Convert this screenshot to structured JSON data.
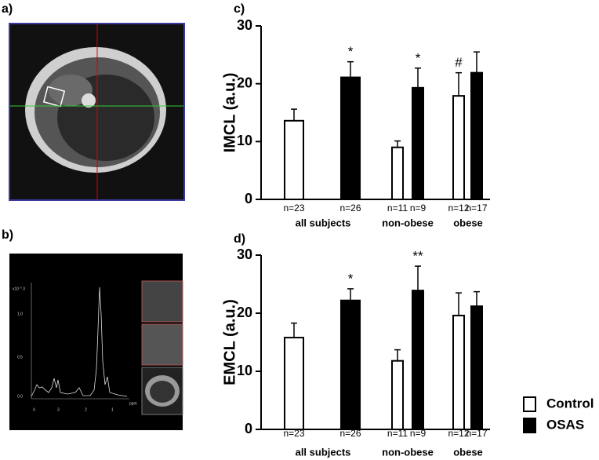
{
  "images": [
    {
      "panel": "a)"
    },
    {
      "panel": "b)",
      "texts": [
        "x10 ^ 3",
        "1.0",
        "0.5",
        "0.0",
        "4",
        "3",
        "2",
        "1",
        "ppm"
      ]
    }
  ],
  "chart_data": [
    {
      "type": "bar",
      "panel": "c)",
      "y_label": "IMCL  (a.u.)",
      "categories": [
        "all subjects",
        "non-obese",
        "obese"
      ],
      "series": [
        {
          "name": "Control",
          "color": "#ffffff",
          "values": [
            13.6,
            9.0,
            17.9
          ],
          "errors": [
            2.0,
            1.1,
            4.0
          ],
          "n_labels": [
            "n=23",
            "n=11",
            "n=12"
          ],
          "annotations": [
            null,
            null,
            "#"
          ]
        },
        {
          "name": "OSAS",
          "color": "#000000",
          "values": [
            21.1,
            19.3,
            21.9
          ],
          "errors": [
            2.7,
            3.4,
            3.6
          ],
          "n_labels": [
            "n=26",
            "n=9",
            "n=17"
          ],
          "annotations": [
            "*",
            "*",
            null
          ]
        }
      ],
      "ylim": [
        0,
        30
      ],
      "yticks": [
        0,
        10,
        20,
        30
      ]
    },
    {
      "type": "bar",
      "panel": "d)",
      "y_label": "EMCL  (a.u.)",
      "categories": [
        "all subjects",
        "non-obese",
        "obese"
      ],
      "series": [
        {
          "name": "Control",
          "color": "#ffffff",
          "values": [
            15.8,
            11.8,
            19.6
          ],
          "errors": [
            2.5,
            1.9,
            3.9
          ],
          "n_labels": [
            "n=23",
            "n=11",
            "n=12"
          ],
          "annotations": [
            null,
            null,
            null
          ]
        },
        {
          "name": "OSAS",
          "color": "#000000",
          "values": [
            22.2,
            23.9,
            21.2
          ],
          "errors": [
            2.0,
            4.2,
            2.5
          ],
          "n_labels": [
            "n=26",
            "n=9",
            "n=17"
          ],
          "annotations": [
            "*",
            "**",
            null
          ]
        }
      ],
      "ylim": [
        0,
        30
      ],
      "yticks": [
        0,
        10,
        20,
        30
      ],
      "legend": "bottom-right"
    }
  ]
}
